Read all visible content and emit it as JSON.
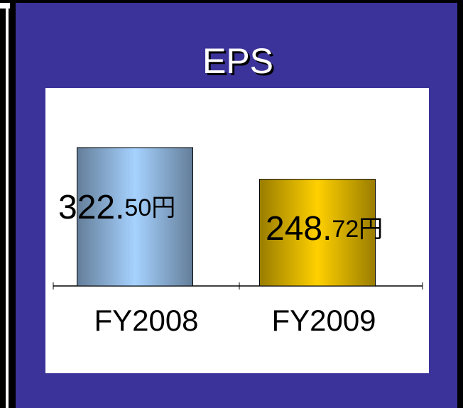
{
  "chart_data": {
    "type": "bar",
    "title": "EPS",
    "categories": [
      "FY2008",
      "FY2009"
    ],
    "values": [
      322.5,
      248.72
    ],
    "value_labels": [
      "322.50円",
      "248.72円"
    ],
    "colors": [
      "#a6d2ff",
      "#ffd000"
    ]
  }
}
